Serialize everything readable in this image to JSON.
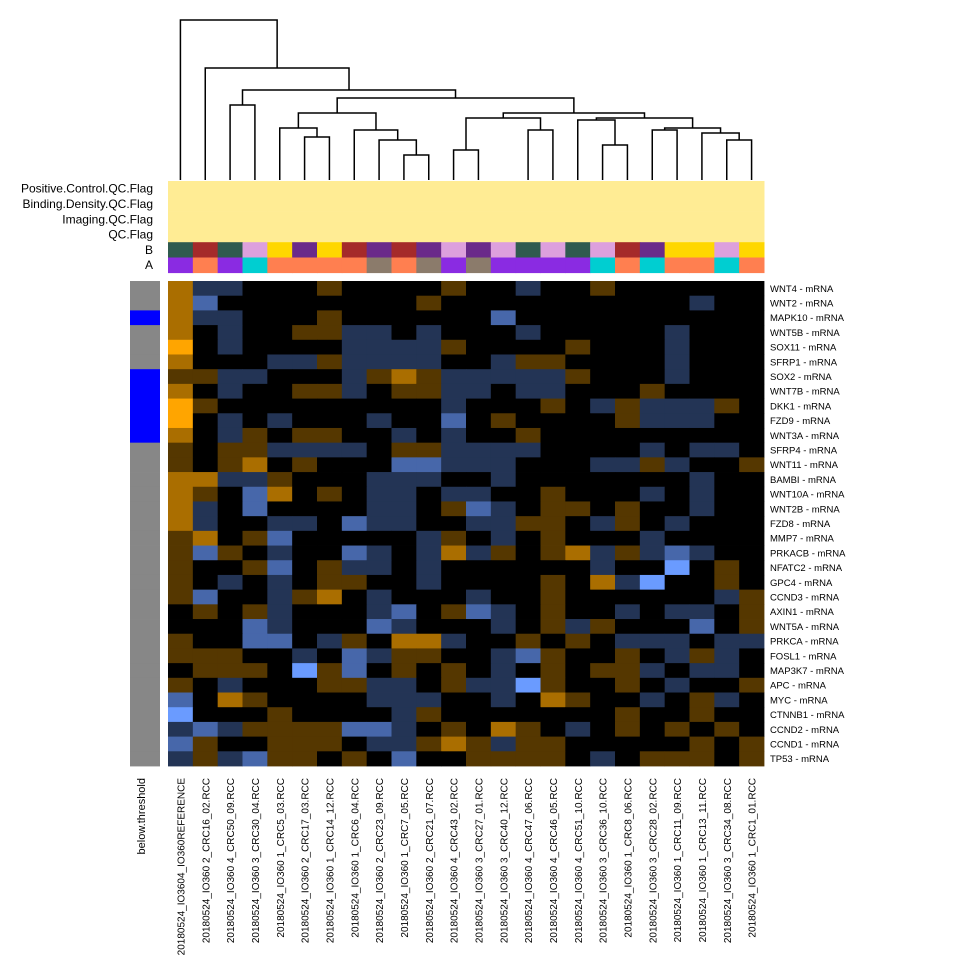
{
  "chart_data": {
    "type": "heatmap",
    "x": [
      "20180524_IO3604_IO360REFERENCE",
      "20180524_IO360 2_CRC16_02.RCC",
      "20180524_IO360 4_CRC50_09.RCC",
      "20180524_IO360 3_CRC30_04.RCC",
      "20180524_IO360 1_CRC5_03.RCC",
      "20180524_IO360 2_CRC17_03.RCC",
      "20180524_IO360 1_CRC14_12.RCC",
      "20180524_IO360 1_CRC6_04.RCC",
      "20180524_IO360 2_CRC23_09.RCC",
      "20180524_IO360 1_CRC7_05.RCC",
      "20180524_IO360 2_CRC21_07.RCC",
      "20180524_IO360 4_CRC43_02.RCC",
      "20180524_IO360 3_CRC27_01.RCC",
      "20180524_IO360 3_CRC40_12.RCC",
      "20180524_IO360 4_CRC47_06.RCC",
      "20180524_IO360 4_CRC46_05.RCC",
      "20180524_IO360 4_CRC51_10.RCC",
      "20180524_IO360 3_CRC36_10.RCC",
      "20180524_IO360 1_CRC8_06.RCC",
      "20180524_IO360 3_CRC28_02.RCC",
      "20180524_IO360 1_CRC11_09.RCC",
      "20180524_IO360 1_CRC13_11.RCC",
      "20180524_IO360 3_CRC34_08.RCC",
      "20180524_IO360 1_CRC1_01.RCC"
    ],
    "y": [
      "WNT4 - mRNA",
      "WNT2 - mRNA",
      "MAPK10 - mRNA",
      "WNT5B - mRNA",
      "SOX11 - mRNA",
      "SFRP1 - mRNA",
      "SOX2 - mRNA",
      "WNT7B - mRNA",
      "DKK1 - mRNA",
      "FZD9 - mRNA",
      "WNT3A - mRNA",
      "SFRP4 - mRNA",
      "WNT11 - mRNA",
      "BAMBI - mRNA",
      "WNT10A - mRNA",
      "WNT2B - mRNA",
      "FZD8 - mRNA",
      "MMP7 - mRNA",
      "PRKACB - mRNA",
      "NFATC2 - mRNA",
      "GPC4 - mRNA",
      "CCND3 - mRNA",
      "AXIN1 - mRNA",
      "WNT5A - mRNA",
      "PRKCA - mRNA",
      "FOSL1 - mRNA",
      "MAP3K7 - mRNA",
      "APC - mRNA",
      "MYC - mRNA",
      "CTNNB1 - mRNA",
      "CCND2 - mRNA",
      "CCND1 - mRNA",
      "TP53 - mRNA"
    ],
    "values": [
      [
        2,
        -1,
        -1,
        0,
        0,
        0,
        1,
        0,
        0,
        0,
        0,
        1,
        0,
        0,
        -1,
        0,
        0,
        1,
        0,
        0,
        0,
        0,
        0,
        0
      ],
      [
        2,
        -2,
        0,
        0,
        0,
        0,
        0,
        0,
        0,
        0,
        1,
        0,
        0,
        0,
        0,
        0,
        0,
        0,
        0,
        0,
        0,
        -1,
        0,
        0
      ],
      [
        2,
        -1,
        -1,
        0,
        0,
        0,
        1,
        0,
        0,
        0,
        0,
        0,
        0,
        -2,
        0,
        0,
        0,
        0,
        0,
        0,
        0,
        0,
        0,
        0
      ],
      [
        2,
        0,
        -1,
        0,
        0,
        1,
        1,
        -1,
        -1,
        0,
        -1,
        0,
        0,
        0,
        -1,
        0,
        0,
        0,
        0,
        0,
        -1,
        0,
        0,
        0
      ],
      [
        3,
        0,
        -1,
        0,
        0,
        0,
        0,
        -1,
        -1,
        -1,
        -1,
        1,
        0,
        0,
        0,
        0,
        1,
        0,
        0,
        0,
        -1,
        0,
        0,
        0
      ],
      [
        2,
        0,
        0,
        0,
        -1,
        -1,
        1,
        -1,
        -1,
        -1,
        -1,
        0,
        0,
        -1,
        1,
        1,
        0,
        0,
        0,
        0,
        -1,
        0,
        0,
        0
      ],
      [
        1,
        1,
        -1,
        -1,
        0,
        0,
        0,
        -1,
        1,
        2,
        1,
        -1,
        -1,
        -1,
        -1,
        -1,
        1,
        0,
        0,
        0,
        -1,
        0,
        0,
        0
      ],
      [
        2,
        0,
        -1,
        0,
        0,
        1,
        1,
        -1,
        0,
        1,
        1,
        -1,
        -1,
        0,
        -1,
        -1,
        0,
        0,
        0,
        1,
        0,
        0,
        0,
        0
      ],
      [
        3,
        1,
        0,
        0,
        0,
        0,
        0,
        0,
        0,
        0,
        0,
        -1,
        0,
        0,
        0,
        1,
        0,
        -1,
        1,
        -1,
        -1,
        -1,
        1,
        0
      ],
      [
        3,
        0,
        -1,
        0,
        -1,
        0,
        0,
        0,
        -1,
        0,
        0,
        -2,
        0,
        1,
        0,
        0,
        0,
        0,
        1,
        -1,
        -1,
        -1,
        0,
        0
      ],
      [
        2,
        0,
        -1,
        1,
        0,
        1,
        1,
        0,
        0,
        -1,
        0,
        -1,
        0,
        0,
        1,
        0,
        0,
        0,
        0,
        0,
        0,
        0,
        0,
        0
      ],
      [
        1,
        0,
        1,
        1,
        -1,
        -1,
        -1,
        -1,
        0,
        1,
        1,
        -1,
        -1,
        -1,
        -1,
        0,
        0,
        0,
        0,
        -1,
        0,
        -1,
        -1,
        0
      ],
      [
        1,
        0,
        1,
        2,
        0,
        1,
        0,
        0,
        0,
        -2,
        -2,
        -1,
        -1,
        -1,
        0,
        0,
        0,
        -1,
        -1,
        1,
        -1,
        0,
        0,
        1
      ],
      [
        2,
        2,
        -1,
        -1,
        1,
        0,
        0,
        0,
        -1,
        -1,
        -1,
        0,
        0,
        -1,
        0,
        0,
        0,
        0,
        0,
        0,
        0,
        -1,
        0,
        0
      ],
      [
        2,
        1,
        0,
        -2,
        2,
        0,
        1,
        0,
        -1,
        -1,
        0,
        -1,
        -1,
        0,
        0,
        1,
        0,
        0,
        0,
        -1,
        0,
        -1,
        0,
        0
      ],
      [
        2,
        -1,
        0,
        -2,
        0,
        0,
        0,
        0,
        -1,
        -1,
        0,
        1,
        -2,
        -1,
        0,
        1,
        1,
        0,
        1,
        0,
        0,
        -1,
        0,
        0
      ],
      [
        2,
        -1,
        0,
        0,
        -1,
        -1,
        0,
        -2,
        -1,
        -1,
        0,
        0,
        -1,
        -1,
        1,
        1,
        0,
        -1,
        1,
        0,
        -1,
        0,
        0,
        0
      ],
      [
        1,
        2,
        0,
        1,
        -2,
        0,
        0,
        0,
        0,
        0,
        -1,
        1,
        0,
        -1,
        0,
        1,
        0,
        0,
        0,
        -1,
        0,
        0,
        0,
        0
      ],
      [
        1,
        -2,
        1,
        0,
        -1,
        0,
        0,
        -2,
        -1,
        0,
        -1,
        2,
        -1,
        1,
        0,
        1,
        2,
        -1,
        1,
        -1,
        -2,
        -1,
        0,
        0
      ],
      [
        1,
        0,
        0,
        1,
        -2,
        0,
        1,
        -1,
        -1,
        0,
        -1,
        0,
        0,
        0,
        0,
        0,
        0,
        -1,
        0,
        0,
        -3,
        0,
        1,
        0
      ],
      [
        1,
        0,
        -1,
        0,
        -1,
        0,
        1,
        1,
        0,
        0,
        -1,
        0,
        0,
        0,
        0,
        1,
        0,
        2,
        -1,
        -3,
        0,
        0,
        1,
        0
      ],
      [
        1,
        -2,
        0,
        0,
        -1,
        1,
        2,
        0,
        -1,
        0,
        0,
        0,
        -1,
        0,
        0,
        1,
        0,
        0,
        0,
        0,
        0,
        0,
        -1,
        1
      ],
      [
        0,
        1,
        0,
        1,
        -1,
        0,
        0,
        0,
        -1,
        -2,
        0,
        1,
        -2,
        -1,
        0,
        1,
        0,
        0,
        -1,
        0,
        -1,
        -1,
        0,
        1
      ],
      [
        0,
        0,
        0,
        -2,
        -1,
        0,
        0,
        0,
        -2,
        -1,
        0,
        0,
        0,
        -1,
        0,
        1,
        -1,
        1,
        0,
        0,
        0,
        -2,
        0,
        1
      ],
      [
        1,
        0,
        0,
        -2,
        -2,
        0,
        -1,
        1,
        0,
        2,
        2,
        -1,
        0,
        0,
        1,
        0,
        1,
        0,
        -1,
        -1,
        -1,
        0,
        -1,
        -1
      ],
      [
        1,
        1,
        1,
        0,
        0,
        -1,
        0,
        -2,
        -1,
        1,
        1,
        0,
        0,
        -1,
        -2,
        1,
        0,
        0,
        1,
        0,
        -1,
        1,
        -1,
        0
      ],
      [
        0,
        1,
        1,
        1,
        0,
        -3,
        1,
        -2,
        0,
        1,
        0,
        1,
        0,
        -1,
        0,
        1,
        0,
        1,
        1,
        -1,
        0,
        -1,
        -1,
        0
      ],
      [
        1,
        0,
        -1,
        0,
        0,
        0,
        1,
        1,
        -1,
        -1,
        0,
        1,
        -1,
        -1,
        -3,
        1,
        0,
        0,
        1,
        0,
        -1,
        0,
        0,
        1
      ],
      [
        -2,
        0,
        2,
        1,
        0,
        0,
        0,
        0,
        -1,
        -1,
        -1,
        0,
        0,
        -1,
        0,
        2,
        1,
        0,
        0,
        -1,
        0,
        1,
        -1,
        0
      ],
      [
        -3,
        0,
        0,
        0,
        1,
        0,
        0,
        0,
        0,
        -1,
        1,
        0,
        0,
        0,
        0,
        0,
        0,
        0,
        1,
        0,
        0,
        1,
        0,
        0
      ],
      [
        -1,
        -2,
        -1,
        1,
        1,
        1,
        1,
        -2,
        -2,
        -1,
        0,
        1,
        0,
        2,
        1,
        0,
        -1,
        0,
        1,
        0,
        1,
        0,
        1,
        0
      ],
      [
        -2,
        1,
        0,
        0,
        1,
        1,
        1,
        0,
        -1,
        -1,
        1,
        2,
        1,
        -1,
        1,
        1,
        0,
        0,
        0,
        0,
        0,
        1,
        0,
        1
      ],
      [
        -1,
        1,
        -1,
        -2,
        1,
        1,
        0,
        1,
        0,
        -2,
        0,
        0,
        1,
        1,
        1,
        1,
        0,
        -1,
        0,
        1,
        1,
        1,
        0,
        1
      ]
    ],
    "zlim": [
      -3,
      3
    ],
    "colorscale": {
      "low": "#6a9bff",
      "mid": "#000000",
      "high": "#ffa500"
    },
    "annotations": [
      {
        "name": "Positive.Control.QC.Flag",
        "color": "#ffec94"
      },
      {
        "name": "Binding.Density.QC.Flag",
        "color": "#ffec94"
      },
      {
        "name": "Imaging.QC.Flag",
        "color": "#ffec94"
      },
      {
        "name": "QC.Flag",
        "color": "#ffec94"
      },
      {
        "name": "B",
        "colors": [
          "#2f5a4f",
          "#a52a2a",
          "#2f5a4f",
          "#dda0dd",
          "#ffd700",
          "#6a2a8a",
          "#ffd700",
          "#a52a2a",
          "#6a2a8a",
          "#a52a2a",
          "#6a2a8a",
          "#dda0dd",
          "#6a2a8a",
          "#dda0dd",
          "#2f5a4f",
          "#dda0dd",
          "#2f5a4f",
          "#dda0dd",
          "#a52a2a",
          "#6a2a8a",
          "#ffd700",
          "#ffd700",
          "#dda0dd",
          "#ffd700"
        ]
      },
      {
        "name": "A",
        "colors": [
          "#8a2be2",
          "#ff7f50",
          "#8a2be2",
          "#00ced1",
          "#ff7f50",
          "#ff7f50",
          "#ff7f50",
          "#ff7f50",
          "#8b7b6b",
          "#ff7f50",
          "#8b7b6b",
          "#8a2be2",
          "#8b7b6b",
          "#8a2be2",
          "#8a2be2",
          "#8a2be2",
          "#8a2be2",
          "#00ced1",
          "#ff7f50",
          "#00ced1",
          "#ff7f50",
          "#ff7f50",
          "#00ced1",
          "#ff7f50"
        ]
      }
    ],
    "below_threshold": {
      "label": "below.threshold",
      "values": [
        0,
        0,
        1,
        0,
        0,
        0,
        1,
        1,
        1,
        1,
        1,
        0,
        0,
        0,
        0,
        0,
        0,
        0,
        0,
        0,
        0,
        0,
        0,
        0,
        0,
        0,
        0,
        0,
        0,
        0,
        0,
        0,
        0
      ],
      "colors": [
        "#878787",
        "#0000ff"
      ]
    }
  }
}
